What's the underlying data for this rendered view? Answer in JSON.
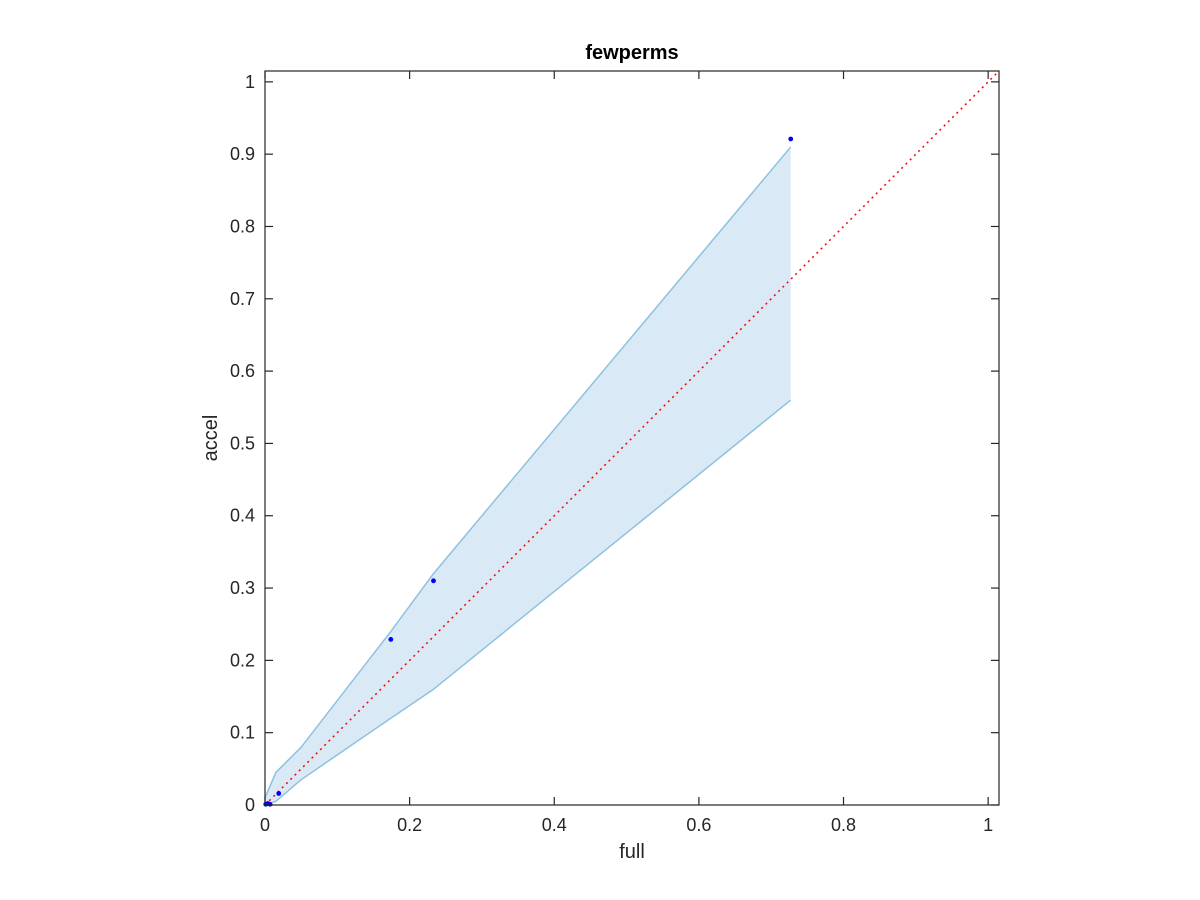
{
  "chart_data": {
    "type": "scatter",
    "title": "fewperms",
    "xlabel": "full",
    "ylabel": "accel",
    "xlim": [
      0,
      1.015
    ],
    "ylim": [
      0,
      1.015
    ],
    "xticks": [
      0,
      0.2,
      0.4,
      0.6,
      0.8,
      1
    ],
    "xtick_labels": [
      "0",
      "0.2",
      "0.4",
      "0.6",
      "0.8",
      "1"
    ],
    "yticks": [
      0,
      0.1,
      0.2,
      0.3,
      0.4,
      0.5,
      0.6,
      0.7,
      0.8,
      0.9,
      1
    ],
    "ytick_labels": [
      "0",
      "0.1",
      "0.2",
      "0.3",
      "0.4",
      "0.5",
      "0.6",
      "0.7",
      "0.8",
      "0.9",
      "1"
    ],
    "grid": false,
    "series": [
      {
        "kind": "points",
        "color": "#0000ff",
        "x": [
          0.001,
          0.004,
          0.007,
          0.019,
          0.174,
          0.233,
          0.727
        ],
        "y": [
          0.001,
          0.002,
          0.001,
          0.016,
          0.229,
          0.31,
          0.921
        ]
      },
      {
        "kind": "reference-line",
        "style": "dotted",
        "color": "#ff0000",
        "x": [
          0,
          1.015
        ],
        "y": [
          0,
          1.015
        ]
      },
      {
        "kind": "confidence-band",
        "edge_color": "#8ec1e0",
        "fill_color": "#d9e9f5",
        "x": [
          0,
          0.015,
          0.05,
          0.174,
          0.233,
          0.727
        ],
        "upper": [
          0.01,
          0.045,
          0.08,
          0.24,
          0.32,
          0.91
        ],
        "lower": [
          0,
          0.005,
          0.035,
          0.12,
          0.16,
          0.56
        ]
      }
    ]
  }
}
